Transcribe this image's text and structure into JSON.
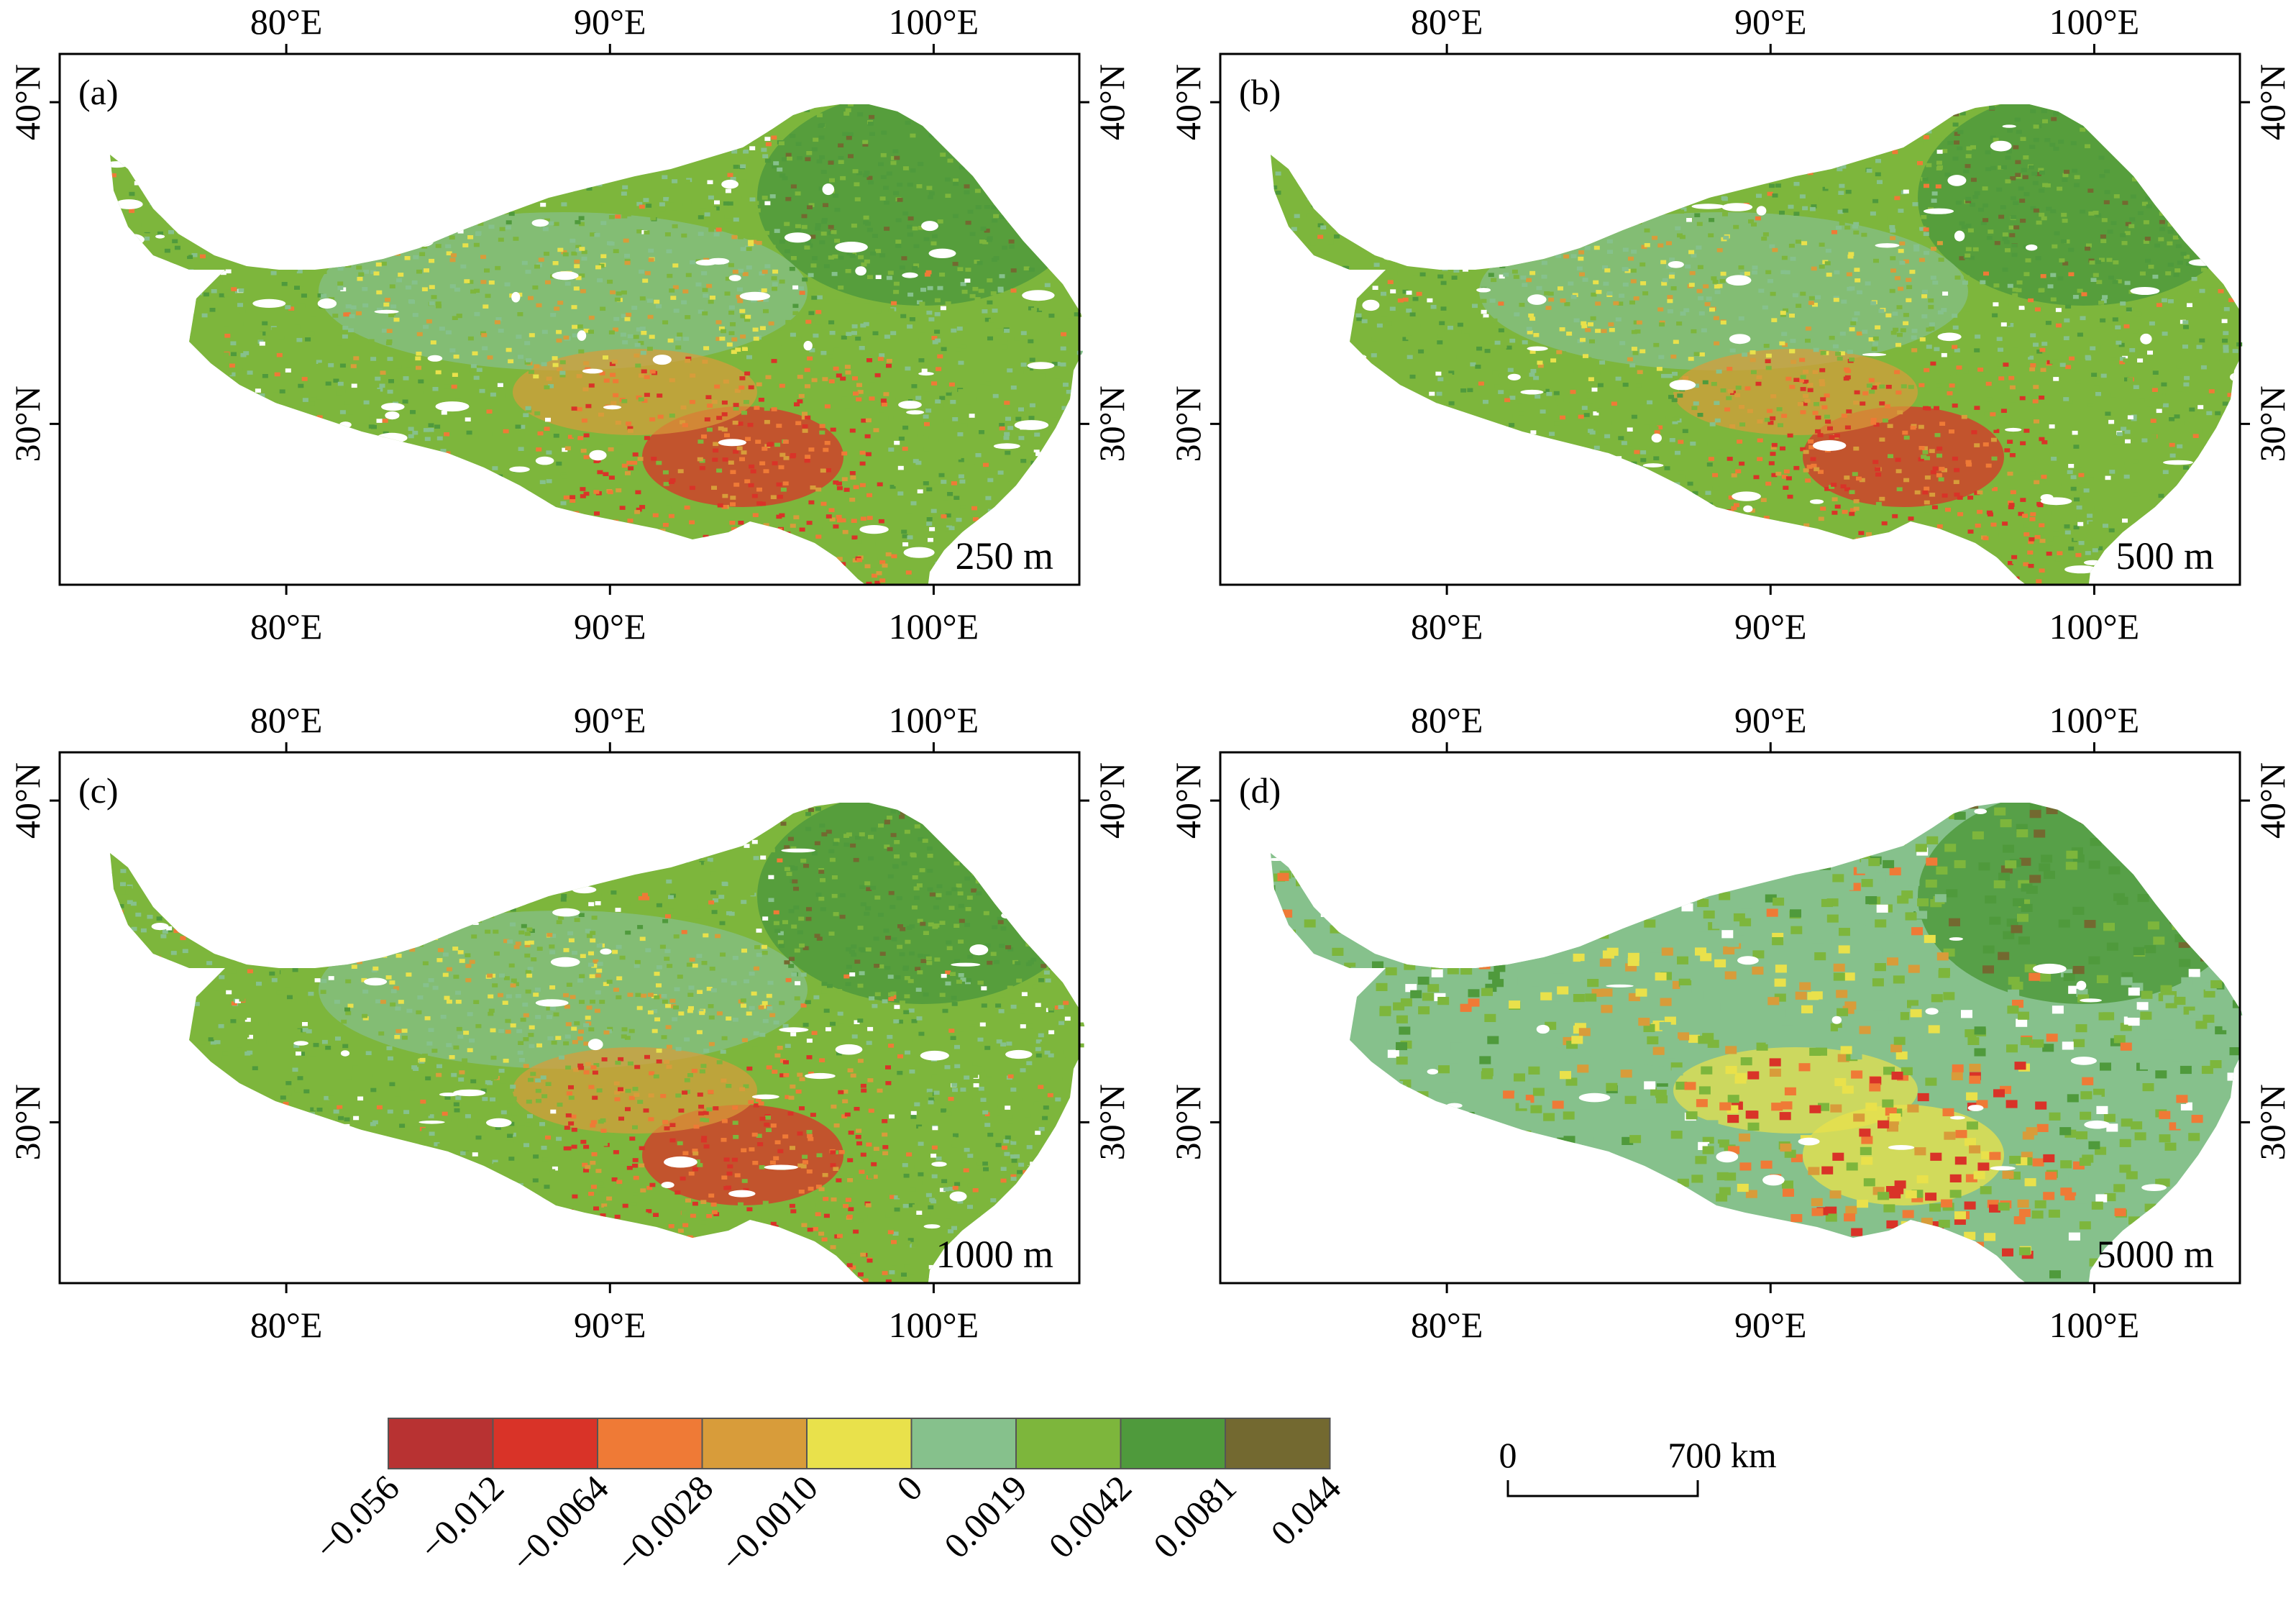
{
  "panels": [
    {
      "label": "(a)",
      "resolution": "250 m"
    },
    {
      "label": "(b)",
      "resolution": "500 m"
    },
    {
      "label": "(c)",
      "resolution": "1000 m"
    },
    {
      "label": "(d)",
      "resolution": "5000 m"
    }
  ],
  "axes": {
    "lon_ticks": [
      {
        "value": 80,
        "label": "80°E"
      },
      {
        "value": 90,
        "label": "90°E"
      },
      {
        "value": 100,
        "label": "100°E"
      }
    ],
    "lat_ticks": [
      {
        "value": 30,
        "label": "30°N"
      },
      {
        "value": 40,
        "label": "40°N"
      }
    ],
    "lon_range": [
      73,
      104.5
    ],
    "lat_range": [
      25,
      41.5
    ]
  },
  "legend": {
    "colors": [
      "#b83232",
      "#d93328",
      "#ef7a36",
      "#d89c3a",
      "#e9e14b",
      "#86c18c",
      "#7db63c",
      "#4f9a3c",
      "#736930"
    ],
    "labels": [
      "−0.056",
      "−0.012",
      "−0.0064",
      "−0.0028",
      "−0.0010",
      "0",
      "0.0019",
      "0.0042",
      "0.0081",
      "0.044"
    ]
  },
  "scale_bar": {
    "start_label": "0",
    "end_label": "700 km"
  }
}
